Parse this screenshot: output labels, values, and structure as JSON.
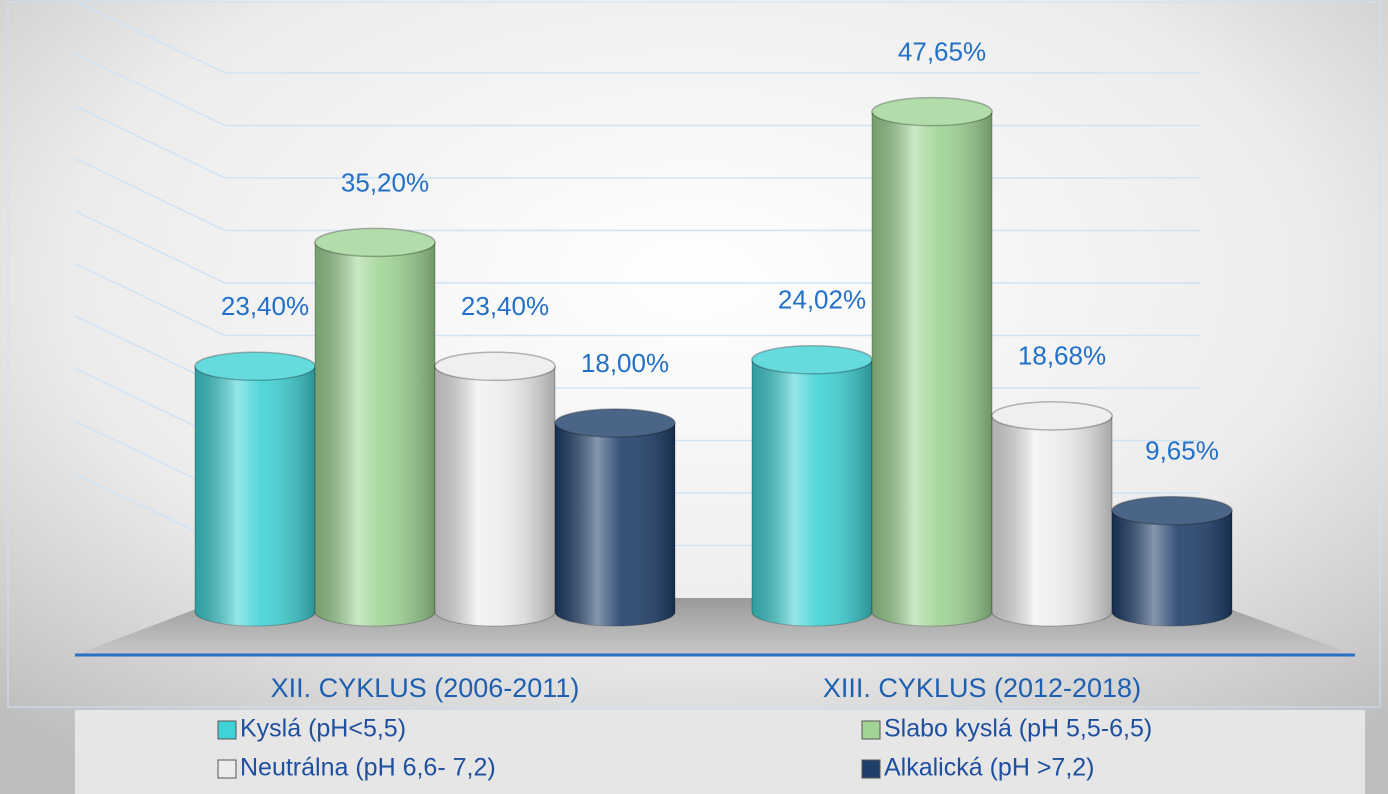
{
  "chart_data": {
    "type": "bar3d",
    "categories": [
      "XII. CYKLUS (2006-2011)",
      "XIII. CYKLUS (2012-2018)"
    ],
    "series": [
      {
        "name": "Kyslá (pH<5,5)",
        "color": "#3fd2d6",
        "values": [
          23.4,
          24.02
        ],
        "value_labels": [
          "23,40%",
          "24,02%"
        ]
      },
      {
        "name": "Slabo kyslá (pH 5,5-6,5)",
        "color": "#9fd494",
        "values": [
          35.2,
          47.65
        ],
        "value_labels": [
          "35,20%",
          "47,65%"
        ]
      },
      {
        "name": "Neutrálna (pH 6,6- 7,2)",
        "color": "#ececec",
        "values": [
          23.4,
          18.68
        ],
        "value_labels": [
          "23,40%",
          "18,68%"
        ]
      },
      {
        "name": "Alkalická (pH >7,2)",
        "color": "#1f3f6b",
        "values": [
          18.0,
          9.65
        ],
        "value_labels": [
          "18,00%",
          "9,65%"
        ]
      }
    ],
    "ylim": [
      0,
      50
    ],
    "yticks": [
      0,
      5,
      10,
      15,
      20,
      25,
      30,
      35,
      40,
      45,
      50
    ],
    "grid": true
  }
}
